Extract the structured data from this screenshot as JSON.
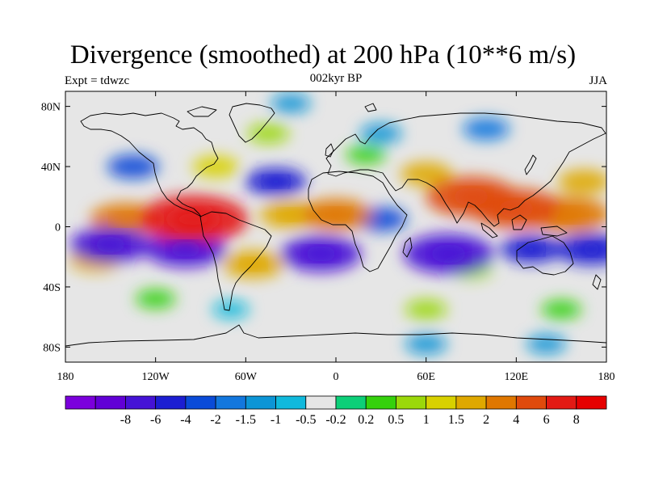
{
  "header": {
    "title": "Divergence (smoothed) at 200 hPa (10**6 m/s)",
    "left_label": "Expt = tdwzc",
    "center_label": "002kyr BP",
    "right_label": "JJA"
  },
  "map": {
    "type": "filled-contour world map",
    "lon_range": [
      -180,
      180
    ],
    "lat_range": [
      -90,
      90
    ],
    "x_ticks": [
      {
        "value": -180,
        "label": "180"
      },
      {
        "value": -120,
        "label": "120W"
      },
      {
        "value": -60,
        "label": "60W"
      },
      {
        "value": 0,
        "label": "0"
      },
      {
        "value": 60,
        "label": "60E"
      },
      {
        "value": 120,
        "label": "120E"
      },
      {
        "value": 180,
        "label": "180"
      }
    ],
    "y_ticks": [
      {
        "value": 80,
        "label": "80N"
      },
      {
        "value": 40,
        "label": "40N"
      },
      {
        "value": 0,
        "label": "0"
      },
      {
        "value": -40,
        "label": "40S"
      },
      {
        "value": -80,
        "label": "80S"
      }
    ],
    "background_color": "#e6e6e6"
  },
  "colorbar": {
    "colors": [
      "#7b00dc",
      "#6100d6",
      "#4512d6",
      "#1c1ed2",
      "#0a4bd8",
      "#1277de",
      "#0c95d6",
      "#10b9dc",
      "#e6e6e6",
      "#0ccf78",
      "#35d10c",
      "#9bd80a",
      "#d8d100",
      "#dfa800",
      "#e07700",
      "#e04a0c",
      "#e31a14",
      "#e60000"
    ],
    "labels": [
      "-8",
      "-6",
      "-4",
      "-2",
      "-1.5",
      "-1",
      "-0.5",
      "-0.2",
      "0.2",
      "0.5",
      "1",
      "1.5",
      "2",
      "4",
      "6",
      "8"
    ]
  },
  "field_features": [
    {
      "lon": -95,
      "lat": 5,
      "value": 8
    },
    {
      "lon": -140,
      "lat": 5,
      "value": 4
    },
    {
      "lon": -30,
      "lat": 8,
      "value": 3
    },
    {
      "lon": 0,
      "lat": 8,
      "value": 4
    },
    {
      "lon": 90,
      "lat": 20,
      "value": 6
    },
    {
      "lon": 120,
      "lat": 12,
      "value": 6
    },
    {
      "lon": 155,
      "lat": 8,
      "value": 5
    },
    {
      "lon": 165,
      "lat": 30,
      "value": 2
    },
    {
      "lon": 60,
      "lat": 35,
      "value": 2
    },
    {
      "lon": -80,
      "lat": 40,
      "value": 1.5
    },
    {
      "lon": -55,
      "lat": -25,
      "value": 3
    },
    {
      "lon": -160,
      "lat": -22,
      "value": 2
    },
    {
      "lon": 90,
      "lat": -28,
      "value": 1
    },
    {
      "lon": -45,
      "lat": 62,
      "value": 1
    },
    {
      "lon": 20,
      "lat": 48,
      "value": 0.8
    },
    {
      "lon": 60,
      "lat": -55,
      "value": 1
    },
    {
      "lon": 150,
      "lat": -55,
      "value": 0.8
    },
    {
      "lon": -120,
      "lat": -48,
      "value": 0.8
    },
    {
      "lon": -100,
      "lat": -15,
      "value": -5
    },
    {
      "lon": -150,
      "lat": -12,
      "value": -5
    },
    {
      "lon": -10,
      "lat": -18,
      "value": -5
    },
    {
      "lon": 75,
      "lat": -18,
      "value": -6
    },
    {
      "lon": 130,
      "lat": -15,
      "value": -3
    },
    {
      "lon": 170,
      "lat": -15,
      "value": -4
    },
    {
      "lon": -40,
      "lat": 30,
      "value": -3
    },
    {
      "lon": -135,
      "lat": 40,
      "value": -2
    },
    {
      "lon": 100,
      "lat": 65,
      "value": -1.5
    },
    {
      "lon": 30,
      "lat": 62,
      "value": -1
    },
    {
      "lon": -30,
      "lat": 82,
      "value": -0.8
    },
    {
      "lon": 60,
      "lat": -78,
      "value": -1
    },
    {
      "lon": 140,
      "lat": -78,
      "value": -0.8
    },
    {
      "lon": 30,
      "lat": 5,
      "value": -2
    },
    {
      "lon": -70,
      "lat": -55,
      "value": -0.5
    }
  ]
}
